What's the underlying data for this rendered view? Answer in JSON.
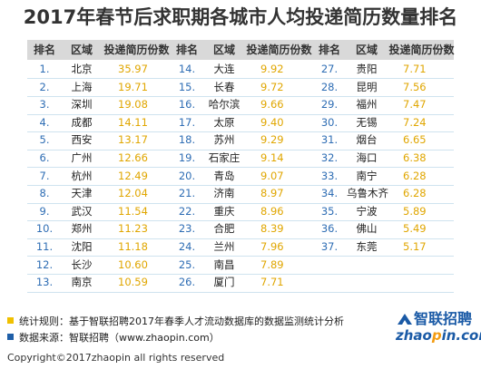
{
  "title": "2017年春节后求职期各城市人均投递简历数量排名",
  "headers": [
    "排名",
    "区域",
    "投递简历份数"
  ],
  "columns": [
    [
      {
        "rank": "1.",
        "city": "北京",
        "value": "35.97"
      },
      {
        "rank": "2.",
        "city": "上海",
        "value": "19.71"
      },
      {
        "rank": "3.",
        "city": "深圳",
        "value": "19.08"
      },
      {
        "rank": "4.",
        "city": "成都",
        "value": "14.11"
      },
      {
        "rank": "5.",
        "city": "西安",
        "value": "13.17"
      },
      {
        "rank": "6.",
        "city": "广州",
        "value": "12.66"
      },
      {
        "rank": "7.",
        "city": "杭州",
        "value": "12.49"
      },
      {
        "rank": "8.",
        "city": "天津",
        "value": "12.04"
      },
      {
        "rank": "9.",
        "city": "武汉",
        "value": "11.54"
      },
      {
        "rank": "10.",
        "city": "郑州",
        "value": "11.23"
      },
      {
        "rank": "11.",
        "city": "沈阳",
        "value": "11.18"
      },
      {
        "rank": "12.",
        "city": "长沙",
        "value": "10.60"
      },
      {
        "rank": "13.",
        "city": "南京",
        "value": "10.59"
      }
    ],
    [
      {
        "rank": "14.",
        "city": "大连",
        "value": "9.92"
      },
      {
        "rank": "15.",
        "city": "长春",
        "value": "9.72"
      },
      {
        "rank": "16.",
        "city": "哈尔滨",
        "value": "9.66"
      },
      {
        "rank": "17.",
        "city": "太原",
        "value": "9.40"
      },
      {
        "rank": "18.",
        "city": "苏州",
        "value": "9.29"
      },
      {
        "rank": "19.",
        "city": "石家庄",
        "value": "9.14"
      },
      {
        "rank": "20.",
        "city": "青岛",
        "value": "9.07"
      },
      {
        "rank": "21.",
        "city": "济南",
        "value": "8.97"
      },
      {
        "rank": "22.",
        "city": "重庆",
        "value": "8.96"
      },
      {
        "rank": "23.",
        "city": "合肥",
        "value": "8.39"
      },
      {
        "rank": "24.",
        "city": "兰州",
        "value": "7.96"
      },
      {
        "rank": "25.",
        "city": "南昌",
        "value": "7.89"
      },
      {
        "rank": "26.",
        "city": "厦门",
        "value": "7.71"
      }
    ],
    [
      {
        "rank": "27.",
        "city": "贵阳",
        "value": "7.71"
      },
      {
        "rank": "28.",
        "city": "昆明",
        "value": "7.56"
      },
      {
        "rank": "29.",
        "city": "福州",
        "value": "7.47"
      },
      {
        "rank": "30.",
        "city": "无锡",
        "value": "7.24"
      },
      {
        "rank": "31.",
        "city": "烟台",
        "value": "6.65"
      },
      {
        "rank": "32.",
        "city": "海口",
        "value": "6.38"
      },
      {
        "rank": "33.",
        "city": "南宁",
        "value": "6.28"
      },
      {
        "rank": "34.",
        "city": "乌鲁木齐",
        "value": "6.28"
      },
      {
        "rank": "35.",
        "city": "宁波",
        "value": "5.89"
      },
      {
        "rank": "36.",
        "city": "佛山",
        "value": "5.49"
      },
      {
        "rank": "37.",
        "city": "东莞",
        "value": "5.17"
      }
    ]
  ],
  "notes": [
    {
      "text": "统计规则：基于智联招聘2017年春季人才流动数据库的数据监测统计分析",
      "color": "#f0c000"
    },
    {
      "text": "数据来源：智联招聘（www.zhaopin.com）",
      "color": "#1f5fa8"
    }
  ],
  "logo": {
    "cn": "智联招聘",
    "en_prefix": "zhao",
    "en_mid": "p",
    "en_suffix": "in.com"
  },
  "copyright": "Copyright©2017zhaopin all rights reserved",
  "colors": {
    "rank": "#2e6db4",
    "value": "#e0a600",
    "header_bg": "#d9d9d9",
    "row_line": "#cfe3ef",
    "brand": "#1a5aa6"
  }
}
